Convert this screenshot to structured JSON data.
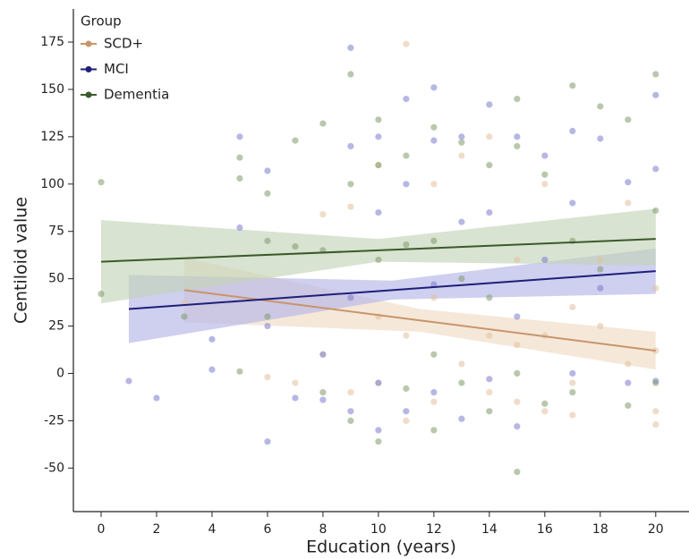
{
  "chart_data": {
    "type": "scatter",
    "x_label": "Education (years)",
    "y_label": "Centiloid value",
    "legend_title": "Group",
    "legend_position": "upper left",
    "xlim": [
      -1,
      21.2
    ],
    "ylim": [
      -73,
      192.5
    ],
    "xticks": [
      0,
      2,
      4,
      6,
      8,
      10,
      12,
      14,
      16,
      18,
      20
    ],
    "yticks": [
      -50,
      -25,
      0,
      25,
      50,
      75,
      100,
      125,
      150,
      175
    ],
    "grid": false,
    "series": [
      {
        "name": "SCD+",
        "color": "#c8956a",
        "point_color": "#e2bf9c",
        "band_color": "#f0dcc5",
        "x": [
          11,
          3,
          6,
          7,
          8,
          8,
          9,
          9,
          10,
          10,
          10,
          11,
          11,
          12,
          12,
          12,
          13,
          13,
          14,
          14,
          14,
          15,
          15,
          15,
          16,
          16,
          16,
          17,
          17,
          17,
          18,
          18,
          19,
          19,
          20,
          20,
          20,
          20
        ],
        "y": [
          174,
          37,
          -2,
          -5,
          84,
          10,
          88,
          -10,
          110,
          30,
          -5,
          20,
          -25,
          100,
          40,
          -15,
          115,
          5,
          125,
          20,
          -10,
          60,
          15,
          -15,
          100,
          20,
          -20,
          35,
          -5,
          -22,
          60,
          25,
          90,
          5,
          45,
          12,
          -20,
          -27
        ],
        "fit_x": [
          3,
          11.5,
          20
        ],
        "fit_y": [
          44,
          28,
          12
        ],
        "fit_lower": [
          27,
          22,
          2
        ],
        "fit_upper": [
          61,
          34,
          22
        ]
      },
      {
        "name": "MCI",
        "color": "#1f1f7a",
        "point_color": "#7b7bd0",
        "band_color": "#b5b5e8",
        "x": [
          1,
          2,
          4,
          4,
          5,
          5,
          6,
          6,
          6,
          7,
          8,
          8,
          9,
          9,
          9,
          9,
          10,
          10,
          10,
          10,
          11,
          11,
          11,
          12,
          12,
          12,
          12,
          13,
          13,
          13,
          14,
          14,
          14,
          15,
          15,
          15,
          16,
          16,
          17,
          17,
          17,
          18,
          18,
          19,
          19,
          20,
          20,
          20
        ],
        "y": [
          -4,
          -13,
          18,
          2,
          125,
          77,
          107,
          -36,
          25,
          -13,
          -14,
          10,
          172,
          120,
          40,
          -20,
          125,
          85,
          -30,
          -5,
          145,
          100,
          -20,
          151,
          123,
          47,
          -10,
          125,
          80,
          -24,
          142,
          85,
          -3,
          125,
          30,
          -28,
          115,
          60,
          128,
          90,
          0,
          124,
          45,
          101,
          -5,
          147,
          108,
          -4
        ],
        "fit_x": [
          1,
          10.5,
          20
        ],
        "fit_y": [
          34,
          44,
          54
        ],
        "fit_lower": [
          16,
          39,
          42
        ],
        "fit_upper": [
          52,
          49,
          66
        ]
      },
      {
        "name": "Dementia",
        "color": "#3a5a2a",
        "point_color": "#7f9a6a",
        "band_color": "#c5d4b8",
        "x": [
          0,
          0,
          3,
          5,
          5,
          5,
          6,
          6,
          6,
          7,
          7,
          8,
          8,
          8,
          9,
          9,
          9,
          10,
          10,
          10,
          10,
          11,
          11,
          11,
          12,
          12,
          12,
          12,
          13,
          13,
          13,
          14,
          14,
          14,
          15,
          15,
          15,
          15,
          16,
          16,
          17,
          17,
          17,
          18,
          18,
          19,
          19,
          20,
          20,
          20
        ],
        "y": [
          101,
          42,
          30,
          114,
          103,
          1,
          95,
          70,
          30,
          123,
          67,
          132,
          65,
          -10,
          158,
          100,
          -25,
          134,
          110,
          60,
          -36,
          115,
          68,
          -8,
          130,
          70,
          -30,
          10,
          122,
          50,
          -5,
          110,
          40,
          -20,
          145,
          120,
          -52,
          0,
          105,
          -16,
          152,
          70,
          -10,
          141,
          55,
          134,
          -17,
          158,
          86,
          -5
        ],
        "fit_x": [
          0,
          10,
          20
        ],
        "fit_y": [
          59,
          65,
          71
        ],
        "fit_lower": [
          37,
          59,
          57
        ],
        "fit_upper": [
          81,
          71,
          87
        ]
      }
    ]
  }
}
